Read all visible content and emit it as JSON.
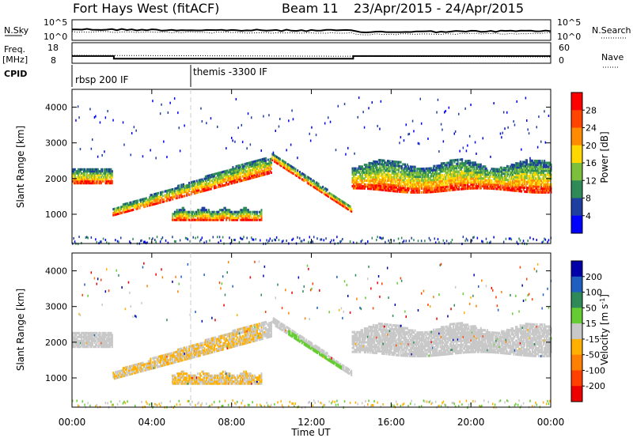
{
  "header": {
    "title": "Fort Hays West (fitACF)",
    "beam": "Beam 11",
    "dates": "23/Apr/2015 - 24/Apr/2015"
  },
  "top_panels": {
    "nsky_label": "N.Sky",
    "nsky_ticks": [
      "10^5",
      "10^0"
    ],
    "nsky_right_ticks": [
      "10^5",
      "10^0"
    ],
    "nsearch_label": "N.Search",
    "freq_label": "Freq.",
    "freq_unit": "[MHz]",
    "freq_ticks": [
      "18",
      "8"
    ],
    "nave_ticks": [
      "60",
      "0"
    ],
    "nave_label": "Nave",
    "cpid_label": "CPID",
    "cpid_segments": [
      {
        "label": "rbsp 200 IF",
        "start": 0
      },
      {
        "label": "themis -3300 IF",
        "start": 6
      }
    ],
    "freq_steps": [
      {
        "x0": 0,
        "x1": 2.1,
        "freq": 11.5
      },
      {
        "x0": 2.1,
        "x1": 14.1,
        "freq": 10.2
      },
      {
        "x0": 14.1,
        "x1": 24,
        "freq": 11.5
      }
    ]
  },
  "chart_data": [
    {
      "type": "heatmap",
      "quantity": "Power",
      "ylabel": "Slant Range [km]",
      "xlabel": "Time UT",
      "xlim": [
        0,
        24
      ],
      "ylim": [
        180,
        4500
      ],
      "y_ticks": [
        1000,
        2000,
        3000,
        4000
      ],
      "colorbar": {
        "label": "Power [dB]",
        "ticks": [
          "28",
          "24",
          "20",
          "16",
          "12",
          "8",
          "4"
        ],
        "colors": [
          "#ff0000",
          "#ff4500",
          "#ff8c00",
          "#ffd700",
          "#7cbf3c",
          "#2e8b57",
          "#1f3fa0",
          "#0000ff"
        ]
      },
      "regions": [
        {
          "name": "west-band",
          "t": [
            0,
            2.0
          ],
          "r": [
            1850,
            2300
          ]
        },
        {
          "name": "rise-band",
          "t": [
            2.0,
            9.5
          ],
          "r": [
            900,
            2550
          ]
        },
        {
          "name": "inner-echo",
          "t": [
            5.0,
            9.5
          ],
          "r": [
            800,
            1150
          ]
        },
        {
          "name": "fall-band",
          "t": [
            10.5,
            14.0
          ],
          "r": [
            1050,
            2650
          ]
        },
        {
          "name": "late-band",
          "t": [
            14.1,
            24
          ],
          "r": [
            1600,
            2600
          ]
        }
      ]
    },
    {
      "type": "heatmap",
      "quantity": "Velocity",
      "ylabel": "Slant Range [km]",
      "xlabel": "Time UT",
      "xlim": [
        0,
        24
      ],
      "ylim": [
        180,
        4500
      ],
      "y_ticks": [
        1000,
        2000,
        3000,
        4000
      ],
      "colorbar": {
        "label": "Velocity [m s^-1]",
        "ticks": [
          "200",
          "100",
          "50",
          "15",
          "-15",
          "-50",
          "-100",
          "-200"
        ],
        "colors": [
          "#0000aa",
          "#1f5fbf",
          "#2e8b57",
          "#66cc33",
          "#c8c8c8",
          "#ffb000",
          "#ff7f00",
          "#ff4000",
          "#ee0000"
        ]
      }
    }
  ],
  "x_axis": {
    "ticks": [
      "00:00",
      "04:00",
      "08:00",
      "12:00",
      "16:00",
      "20:00",
      "00:00"
    ],
    "label": "Time UT"
  }
}
